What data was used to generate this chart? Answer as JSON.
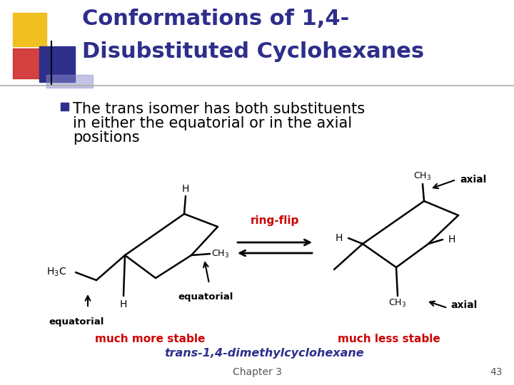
{
  "bg_color": "#ffffff",
  "title_line1": "Conformations of 1,4-",
  "title_line2": "Disubstituted Cyclohexanes",
  "title_color": "#2e2e8b",
  "title_fontsize": 22,
  "bullet_square_color": "#2e2e8b",
  "bullet_text_line1": "The trans isomer has both substituents",
  "bullet_text_line2": "in either the equatorial or in the axial",
  "bullet_text_line3": "positions",
  "bullet_fontsize": 15,
  "bullet_color": "#000000",
  "ring_flip_text": "ring-flip",
  "ring_flip_color": "#cc0000",
  "much_more_stable_text": "much more stable",
  "much_more_stable_color": "#cc0000",
  "much_less_stable_text": "much less stable",
  "much_less_stable_color": "#cc0000",
  "trans_label_text": "trans-1,4-dimethylcyclohexane",
  "trans_label_color": "#2e2e8b",
  "chapter_text": "Chapter 3",
  "page_text": "43",
  "footer_color": "#555555",
  "molecule_color": "#000000",
  "deco_yellow": "#f0c020",
  "deco_red": "#cc2020",
  "deco_blue": "#2e2e8b"
}
